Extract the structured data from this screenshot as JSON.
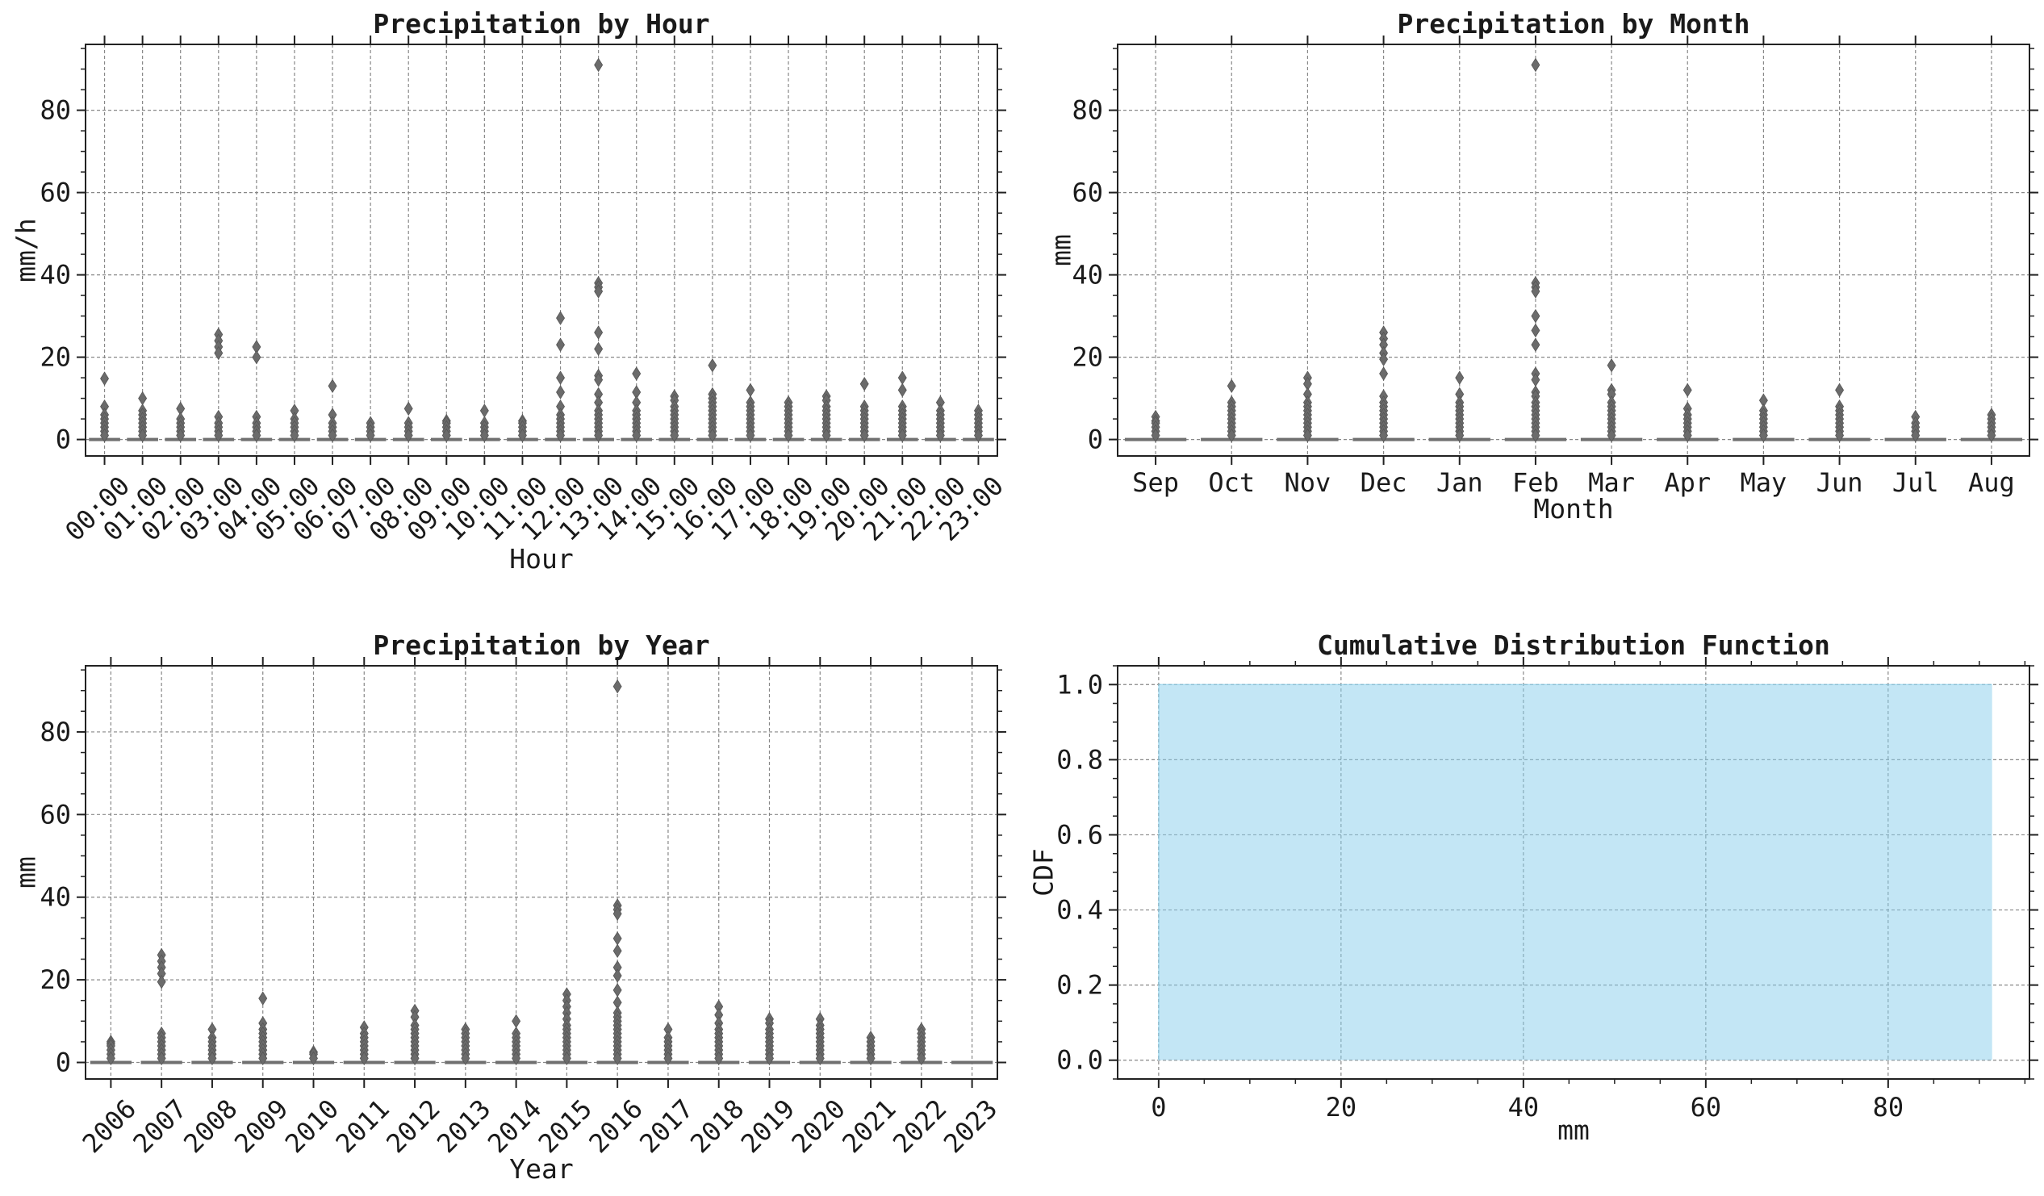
{
  "colors": {
    "box": "#707070",
    "flier": "#6b6b6b",
    "cdf_fill": "#87ceeb",
    "grid": "#888888"
  },
  "chart_data": [
    {
      "type": "box",
      "title": "Precipitation by Hour",
      "xlabel": "Hour",
      "ylabel": "mm/h",
      "ylim": [
        -4,
        96
      ],
      "yticks": [
        0,
        20,
        40,
        60,
        80
      ],
      "tick_rotation": 45,
      "grid": true,
      "categories": [
        "00:00",
        "01:00",
        "02:00",
        "03:00",
        "04:00",
        "05:00",
        "06:00",
        "07:00",
        "08:00",
        "09:00",
        "10:00",
        "11:00",
        "12:00",
        "13:00",
        "14:00",
        "15:00",
        "16:00",
        "17:00",
        "18:00",
        "19:00",
        "20:00",
        "21:00",
        "22:00",
        "23:00"
      ],
      "outliers": [
        [
          14.8,
          8,
          6,
          5,
          4,
          3,
          2,
          1
        ],
        [
          10,
          7,
          6,
          5,
          4,
          3,
          2,
          1
        ],
        [
          7.5,
          5,
          4,
          3,
          2,
          1
        ],
        [
          25.5,
          24,
          22.5,
          21,
          5.5,
          4,
          3,
          2,
          1
        ],
        [
          22.5,
          20,
          5.5,
          4,
          3,
          2,
          1
        ],
        [
          7,
          5,
          4,
          3,
          2,
          1
        ],
        [
          13,
          6,
          4,
          3,
          2,
          1
        ],
        [
          4,
          3,
          2,
          1
        ],
        [
          7.5,
          4,
          3,
          2,
          1
        ],
        [
          4.5,
          4,
          3,
          2,
          1
        ],
        [
          7,
          4,
          3,
          2,
          1
        ],
        [
          4.5,
          4,
          3,
          2,
          1
        ],
        [
          29.5,
          23,
          15,
          11.5,
          8,
          6,
          5,
          4,
          3,
          2,
          1
        ],
        [
          91,
          38,
          37,
          36,
          26,
          22,
          15.5,
          14.5,
          11,
          9,
          7,
          6,
          5,
          4,
          3,
          2,
          1
        ],
        [
          16,
          11.5,
          9,
          7,
          6,
          5,
          4,
          3,
          2,
          1
        ],
        [
          10.5,
          9.5,
          8,
          7,
          6,
          5,
          4,
          3,
          2,
          1
        ],
        [
          18,
          11,
          10,
          9,
          8,
          7,
          6,
          5,
          4,
          3,
          2,
          1
        ],
        [
          12,
          9,
          8,
          7,
          6,
          5,
          4,
          3,
          2,
          1
        ],
        [
          9,
          8,
          7,
          6,
          5,
          4,
          3,
          2,
          1
        ],
        [
          10.5,
          9.5,
          8,
          7,
          6,
          5,
          4,
          3,
          2,
          1
        ],
        [
          13.5,
          8,
          7,
          6,
          5,
          4,
          3,
          2,
          1
        ],
        [
          15,
          12,
          8,
          7,
          6,
          5,
          4,
          3,
          2,
          1
        ],
        [
          9,
          7,
          6,
          5,
          4,
          3,
          2,
          1
        ],
        [
          7,
          6,
          5,
          4,
          3,
          2,
          1
        ]
      ]
    },
    {
      "type": "box",
      "title": "Precipitation by Month",
      "xlabel": "Month",
      "ylabel": "mm",
      "ylim": [
        -4,
        96
      ],
      "yticks": [
        0,
        20,
        40,
        60,
        80
      ],
      "tick_rotation": 0,
      "grid": true,
      "categories": [
        "Sep",
        "Oct",
        "Nov",
        "Dec",
        "Jan",
        "Feb",
        "Mar",
        "Apr",
        "May",
        "Jun",
        "Jul",
        "Aug"
      ],
      "outliers": [
        [
          5.5,
          4.5,
          4,
          3,
          2,
          1
        ],
        [
          13,
          9,
          8,
          7,
          6,
          5,
          4,
          3,
          2,
          1
        ],
        [
          15,
          13.5,
          11,
          9,
          8,
          7,
          6,
          5,
          4,
          3,
          2,
          1
        ],
        [
          26,
          24.5,
          23,
          21,
          19.5,
          16,
          10.5,
          9,
          8,
          7,
          6,
          5,
          4,
          3,
          2,
          1
        ],
        [
          15,
          11,
          9,
          8,
          7,
          6,
          5,
          4,
          3,
          2,
          1
        ],
        [
          91,
          38,
          37,
          36,
          30,
          26.5,
          23,
          16,
          14.5,
          11.5,
          10.5,
          9,
          8,
          7,
          6,
          5,
          4,
          3,
          2,
          1
        ],
        [
          18,
          12,
          11,
          9,
          8,
          7,
          6,
          5,
          4,
          3,
          2,
          1
        ],
        [
          12,
          7.5,
          6,
          5,
          4,
          3,
          2,
          1
        ],
        [
          9.5,
          7,
          6,
          5,
          4,
          3,
          2,
          1
        ],
        [
          12,
          8,
          7,
          6,
          5,
          4,
          3,
          2,
          1
        ],
        [
          5.5,
          4,
          3,
          2,
          1
        ],
        [
          6,
          5,
          4,
          3,
          2,
          1
        ]
      ]
    },
    {
      "type": "box",
      "title": "Precipitation by Year",
      "xlabel": "Year",
      "ylabel": "mm",
      "ylim": [
        -4,
        96
      ],
      "yticks": [
        0,
        20,
        40,
        60,
        80
      ],
      "tick_rotation": 45,
      "grid": true,
      "categories": [
        "2006",
        "2007",
        "2008",
        "2009",
        "2010",
        "2011",
        "2012",
        "2013",
        "2014",
        "2015",
        "2016",
        "2017",
        "2018",
        "2019",
        "2020",
        "2021",
        "2022",
        "2023"
      ],
      "outliers": [
        [
          5,
          4.5,
          4,
          3,
          2,
          1
        ],
        [
          26,
          24.5,
          23,
          21.5,
          19.5,
          7,
          6,
          5,
          4,
          3,
          2,
          1
        ],
        [
          8,
          6,
          5,
          4,
          3,
          2,
          1
        ],
        [
          15.5,
          9.5,
          8,
          7,
          6,
          5,
          4,
          3,
          2,
          1
        ],
        [
          2.5,
          2,
          1
        ],
        [
          8.5,
          7,
          6,
          5,
          4,
          3,
          2,
          1
        ],
        [
          12.5,
          11,
          9,
          8,
          7,
          6,
          5,
          4,
          3,
          2,
          1
        ],
        [
          8,
          7,
          6,
          5,
          4,
          3,
          2,
          1
        ],
        [
          10,
          7,
          6,
          5,
          4,
          3,
          2,
          1
        ],
        [
          16.5,
          15,
          13.5,
          12,
          10.5,
          9,
          8,
          7,
          6,
          5,
          4,
          3,
          2,
          1
        ],
        [
          91,
          38,
          37,
          36,
          30,
          27,
          23,
          21,
          17.5,
          14.5,
          12,
          11,
          10,
          9,
          8,
          7,
          6,
          5,
          4,
          3,
          2,
          1
        ],
        [
          8,
          6,
          5,
          4,
          3,
          2,
          1
        ],
        [
          13.5,
          11.5,
          9.5,
          8,
          7,
          6,
          5,
          4,
          3,
          2,
          1
        ],
        [
          10.5,
          9.5,
          8,
          7,
          6,
          5,
          4,
          3,
          2,
          1
        ],
        [
          10.5,
          9,
          8,
          7,
          6,
          5,
          4,
          3,
          2,
          1
        ],
        [
          6,
          5,
          4,
          3,
          2,
          1
        ],
        [
          8,
          7,
          6,
          5,
          4,
          3,
          2,
          1
        ],
        []
      ]
    },
    {
      "type": "area",
      "title": "Cumulative Distribution Function",
      "xlabel": "mm",
      "ylabel": "CDF",
      "xlim": [
        -4.5,
        95.5
      ],
      "ylim": [
        -0.05,
        1.05
      ],
      "xticks": [
        0,
        20,
        40,
        60,
        80
      ],
      "yticks": [
        0.0,
        0.2,
        0.4,
        0.6,
        0.8,
        1.0
      ],
      "ytick_labels": [
        "0.0",
        "0.2",
        "0.4",
        "0.6",
        "0.8",
        "1.0"
      ],
      "grid": true,
      "x": [
        0,
        0.01,
        91.4
      ],
      "y": [
        0,
        1.0,
        1.0
      ]
    }
  ]
}
